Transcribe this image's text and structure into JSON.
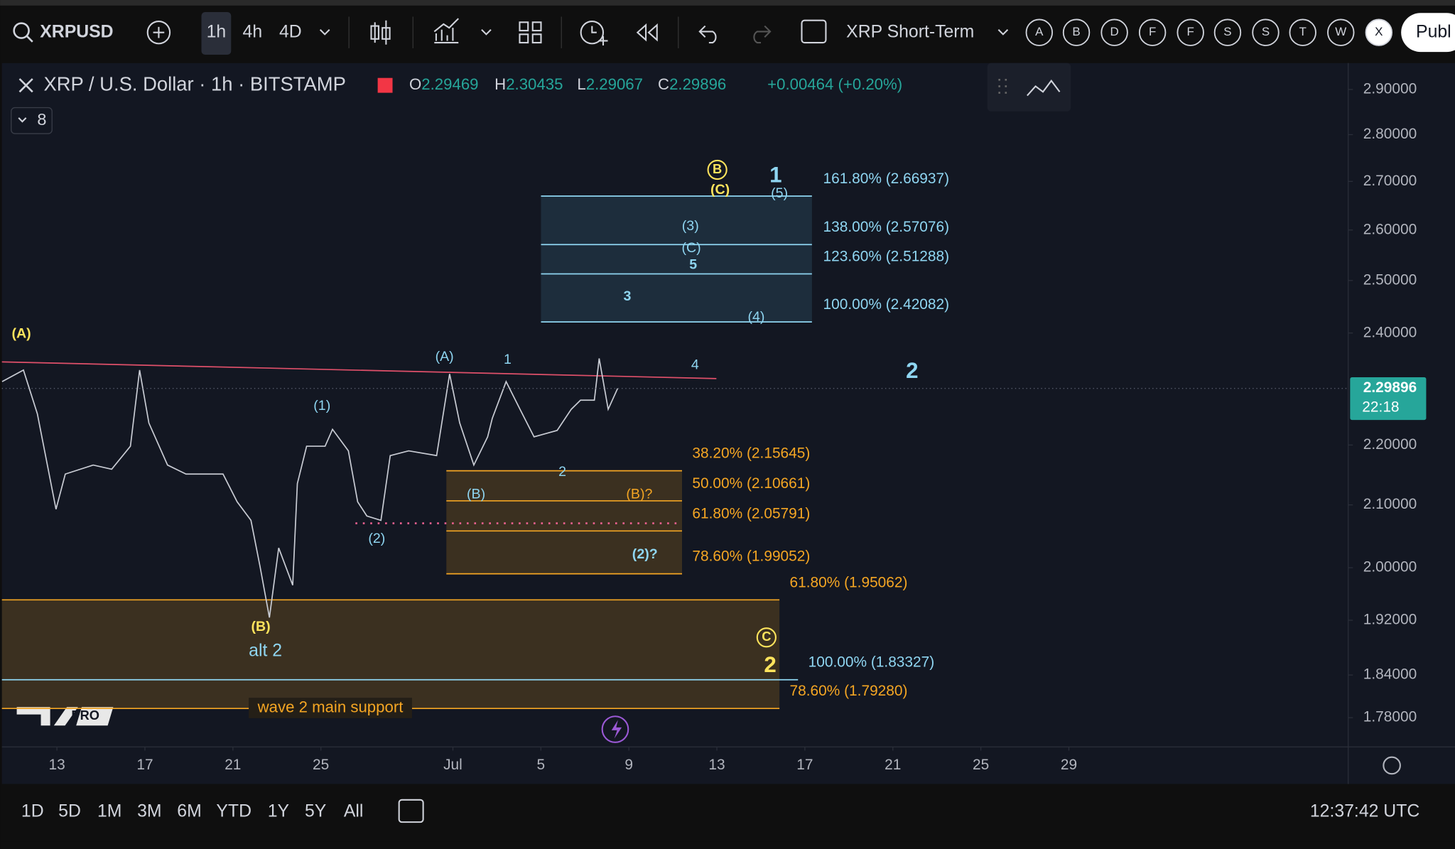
{
  "toolbar": {
    "symbol": "XRPUSD",
    "intervals": [
      "1h",
      "4h",
      "4D"
    ],
    "layout": "XRP Short-Term",
    "letters": [
      "A",
      "B",
      "D",
      "F",
      "F",
      "S",
      "S",
      "T",
      "W",
      "X"
    ],
    "publish": "Publ"
  },
  "legend": {
    "title": "XRP / U.S. Dollar · 1h · BITSTAMP",
    "ohlc": [
      {
        "key": "O",
        "value": 2.29469
      },
      {
        "key": "H",
        "value": 2.30435
      },
      {
        "key": "L",
        "value": 2.29067
      },
      {
        "key": "C",
        "value": 2.29896
      }
    ],
    "change": "+0.00464 (+0.20%)",
    "indicators": "8"
  },
  "chart_data": {
    "type": "line",
    "log_scale": true,
    "color": "#c9ccd4",
    "x": [
      10.51,
      11.48,
      12.11,
      12.96,
      13.38,
      14.65,
      15.49,
      16.34,
      16.76,
      17.18,
      18.03,
      18.87,
      20.55,
      21.19,
      21.82,
      22.24,
      22.66,
      23.08,
      23.72,
      23.93,
      24.35,
      25.19,
      25.53,
      26.25,
      26.67,
      27.09,
      27.73,
      28.15,
      28.99,
      30.26,
      30.85,
      31.31,
      31.95,
      32.58,
      32.79,
      33.42,
      34.05,
      34.69,
      35.74,
      36.38,
      36.8,
      37.43,
      37.65,
      38.06,
      38.49
    ],
    "values": [
      2.311,
      2.332,
      2.254,
      2.093,
      2.151,
      2.166,
      2.159,
      2.198,
      2.332,
      2.238,
      2.166,
      2.151,
      2.151,
      2.105,
      2.075,
      2.001,
      1.924,
      2.031,
      1.973,
      2.135,
      2.198,
      2.198,
      2.227,
      2.19,
      2.105,
      2.082,
      2.075,
      2.182,
      2.19,
      2.182,
      2.325,
      2.238,
      2.166,
      2.214,
      2.246,
      2.311,
      2.262,
      2.214,
      2.225,
      2.262,
      2.278,
      2.278,
      2.353,
      2.262,
      2.299
    ],
    "xlim": [
      10.5,
      71.7
    ],
    "xticks": [
      {
        "value": 13,
        "label": "13"
      },
      {
        "value": 17,
        "label": "17"
      },
      {
        "value": 21,
        "label": "21"
      },
      {
        "value": 25,
        "label": "25"
      },
      {
        "value": 31,
        "label": "Jul"
      },
      {
        "value": 35,
        "label": "5"
      },
      {
        "value": 39,
        "label": "9"
      },
      {
        "value": 43,
        "label": "13"
      },
      {
        "value": 47,
        "label": "17"
      },
      {
        "value": 51,
        "label": "21"
      },
      {
        "value": 55,
        "label": "25"
      },
      {
        "value": 59,
        "label": "29"
      }
    ],
    "ylim": [
      1.74,
      2.96
    ],
    "yticks": [
      {
        "value": 2.9,
        "label": "2.90000"
      },
      {
        "value": 2.8,
        "label": "2.80000"
      },
      {
        "value": 2.7,
        "label": "2.70000"
      },
      {
        "value": 2.6,
        "label": "2.60000"
      },
      {
        "value": 2.5,
        "label": "2.50000"
      },
      {
        "value": 2.4,
        "label": "2.40000"
      },
      {
        "value": 2.2,
        "label": "2.20000"
      },
      {
        "value": 2.1,
        "label": "2.10000"
      },
      {
        "value": 2,
        "label": "2.00000"
      },
      {
        "value": 1.92,
        "label": "1.92000"
      },
      {
        "value": 1.84,
        "label": "1.84000"
      },
      {
        "value": 1.78,
        "label": "1.78000"
      }
    ],
    "last_price": {
      "value": 2.29896,
      "countdown": "22:18"
    },
    "fib_upper": [
      {
        "label": "161.80% (2.66937)",
        "value": 2.66937,
        "color": "#8fd6f2"
      },
      {
        "label": "138.00% (2.57076)",
        "value": 2.57076,
        "color": "#8fd6f2"
      },
      {
        "label": "123.60% (2.51288)",
        "value": 2.51288,
        "color": "#8fd6f2"
      },
      {
        "label": "100.00% (2.42082)",
        "value": 2.42082,
        "color": "#8fd6f2"
      }
    ],
    "fib_mid": [
      {
        "label": "38.20% (2.15645)",
        "value": 2.15645,
        "color": "#f5a623"
      },
      {
        "label": "50.00% (2.10661)",
        "value": 2.10661,
        "color": "#f5a623"
      },
      {
        "label": "61.80% (2.05791)",
        "value": 2.05791,
        "color": "#f5a623"
      },
      {
        "label": "78.60% (1.99052)",
        "value": 1.99052,
        "color": "#f5a623"
      }
    ],
    "fib_low": [
      {
        "label": "61.80% (1.95062)",
        "value": 1.95062,
        "color": "#f5a623"
      },
      {
        "label": "100.00% (1.83327)",
        "value": 1.83327,
        "color": "#8fd6f2"
      },
      {
        "label": "78.60% (1.79280)",
        "value": 1.7928,
        "color": "#f5a623"
      }
    ],
    "wave_labels": [
      "(A)",
      "(A)",
      "1",
      "4",
      "2",
      "(1)",
      "(2)",
      "(B)",
      "2",
      "(B)?",
      "(2)?",
      "(B)",
      "alt 2",
      "2",
      "(C)",
      "1",
      "(5)",
      "(3)",
      "(C)",
      "5",
      "3",
      "(4)",
      "B",
      "C"
    ],
    "support_label": "wave 2 main support"
  },
  "range_buttons": [
    "1D",
    "5D",
    "1M",
    "3M",
    "6M",
    "YTD",
    "1Y",
    "5Y",
    "All"
  ],
  "clock": "12:37:42 UTC",
  "watermark": "PRO"
}
